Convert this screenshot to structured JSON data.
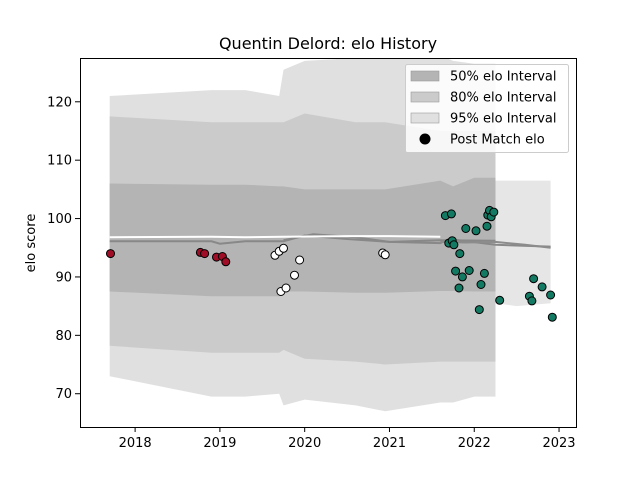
{
  "chart_data": {
    "type": "scatter",
    "title": "Quentin Delord: elo History",
    "xlabel": "",
    "ylabel": "elo score",
    "xlim": [
      2017.35,
      2023.2
    ],
    "ylim": [
      64.3,
      127.5
    ],
    "xticks": [
      2018,
      2019,
      2020,
      2021,
      2022,
      2023
    ],
    "yticks": [
      70,
      80,
      90,
      100,
      110,
      120
    ],
    "grid": false,
    "legend_position": "top-right",
    "legend": [
      {
        "label": "50% elo Interval",
        "kind": "band",
        "color": "#b4b4b4"
      },
      {
        "label": "80% elo Interval",
        "kind": "band",
        "color": "#cbcbcb"
      },
      {
        "label": "95% elo Interval",
        "kind": "band",
        "color": "#e0e0e0"
      },
      {
        "label": "Post Match elo",
        "kind": "marker",
        "color": "#000000"
      }
    ],
    "bands": {
      "x": [
        2017.7,
        2018.9,
        2019.0,
        2019.3,
        2019.7,
        2019.75,
        2020.0,
        2020.6,
        2020.95,
        2021.6,
        2021.75,
        2022.0,
        2022.25
      ],
      "b95_upper": [
        121,
        122,
        122,
        122,
        121,
        125.5,
        127,
        127.5,
        127.5,
        128,
        127,
        126.5,
        126.5
      ],
      "b95_lower": [
        73,
        69.5,
        69.5,
        69.5,
        70,
        68,
        69,
        68,
        67,
        68.5,
        68.5,
        69.5,
        69.5
      ],
      "b80_upper": [
        117.5,
        116.5,
        116.5,
        116.5,
        116.5,
        116.5,
        118,
        116.5,
        116.5,
        115,
        115,
        115,
        115
      ],
      "b80_lower": [
        78.2,
        77,
        77,
        77,
        77,
        77.5,
        76,
        75.5,
        75,
        75.5,
        75.5,
        75.5,
        75.5
      ],
      "b50_upper": [
        106,
        105.8,
        105.8,
        105.8,
        105.5,
        105.5,
        105,
        105,
        105,
        106.5,
        105.5,
        107,
        107
      ],
      "b50_lower": [
        87.5,
        86.7,
        86.7,
        86.7,
        86.7,
        87.5,
        87.5,
        87.3,
        87.3,
        87.6,
        87.6,
        87.5,
        87.5
      ],
      "tail_95_upper": {
        "x": [
          2022.25,
          2022.5,
          2022.9
        ],
        "y": [
          106.5,
          106.5,
          106.5
        ]
      },
      "tail_95_lower": {
        "x": [
          2022.25,
          2022.5,
          2022.9
        ],
        "y": [
          85.5,
          85,
          85.5
        ]
      }
    },
    "mean_lines": [
      {
        "x": [
          2017.7,
          2018.9,
          2019.0,
          2019.3,
          2019.75,
          2020.0,
          2020.5,
          2021.0,
          2021.6,
          2022.25
        ],
        "y": [
          96.1,
          96.1,
          95.7,
          96.1,
          96.1,
          97.1,
          96.5,
          96.0,
          96.3,
          96.2
        ],
        "color": "#888888"
      },
      {
        "x": [
          2019.75,
          2020.1,
          2020.6,
          2021.0,
          2021.6,
          2021.7,
          2022.25,
          2022.9
        ],
        "y": [
          96.3,
          97.3,
          96.8,
          96.0,
          95.8,
          96.5,
          95.5,
          95.2
        ],
        "color": "#888888"
      },
      {
        "x": [
          2021.6,
          2021.9,
          2022.25,
          2022.6,
          2022.9
        ],
        "y": [
          96.0,
          95.9,
          96.0,
          95.5,
          95.0
        ],
        "color": "#8c8c8c"
      },
      {
        "x": [
          2017.7,
          2018.9,
          2019.3,
          2019.75,
          2020.5,
          2021.0,
          2021.6
        ],
        "y": [
          96.8,
          96.9,
          96.8,
          96.9,
          97.0,
          97.0,
          96.9
        ],
        "color": "#ffffff"
      }
    ],
    "series": [
      {
        "name": "Post Match elo",
        "color": "#a00d26",
        "points": [
          [
            2017.71,
            94.0
          ],
          [
            2018.77,
            94.2
          ],
          [
            2018.82,
            94.0
          ],
          [
            2018.96,
            93.4
          ],
          [
            2019.03,
            93.5
          ],
          [
            2019.07,
            92.6
          ]
        ]
      },
      {
        "color": "#ffffff",
        "points": [
          [
            2019.65,
            93.7
          ],
          [
            2019.7,
            94.4
          ],
          [
            2019.75,
            94.9
          ],
          [
            2019.72,
            87.5
          ],
          [
            2019.78,
            88.1
          ],
          [
            2019.88,
            90.3
          ],
          [
            2019.94,
            92.9
          ],
          [
            2020.92,
            94.1
          ],
          [
            2020.95,
            93.8
          ]
        ]
      },
      {
        "color": "#127a63",
        "points": [
          [
            2021.66,
            100.5
          ],
          [
            2021.73,
            100.8
          ],
          [
            2021.7,
            95.8
          ],
          [
            2021.74,
            96.2
          ],
          [
            2021.76,
            95.5
          ],
          [
            2021.78,
            91.0
          ],
          [
            2021.82,
            88.1
          ],
          [
            2021.83,
            94.0
          ],
          [
            2021.86,
            90.0
          ],
          [
            2021.9,
            98.3
          ],
          [
            2021.94,
            91.1
          ],
          [
            2022.02,
            97.9
          ],
          [
            2022.06,
            84.4
          ],
          [
            2022.08,
            88.7
          ],
          [
            2022.12,
            90.6
          ],
          [
            2022.15,
            98.7
          ],
          [
            2022.16,
            100.6
          ],
          [
            2022.18,
            101.4
          ],
          [
            2022.2,
            100.3
          ],
          [
            2022.23,
            101.1
          ],
          [
            2022.3,
            86.0
          ],
          [
            2022.65,
            86.7
          ],
          [
            2022.68,
            85.9
          ],
          [
            2022.7,
            89.7
          ],
          [
            2022.8,
            88.3
          ],
          [
            2022.9,
            86.9
          ],
          [
            2022.92,
            83.1
          ]
        ]
      }
    ]
  }
}
